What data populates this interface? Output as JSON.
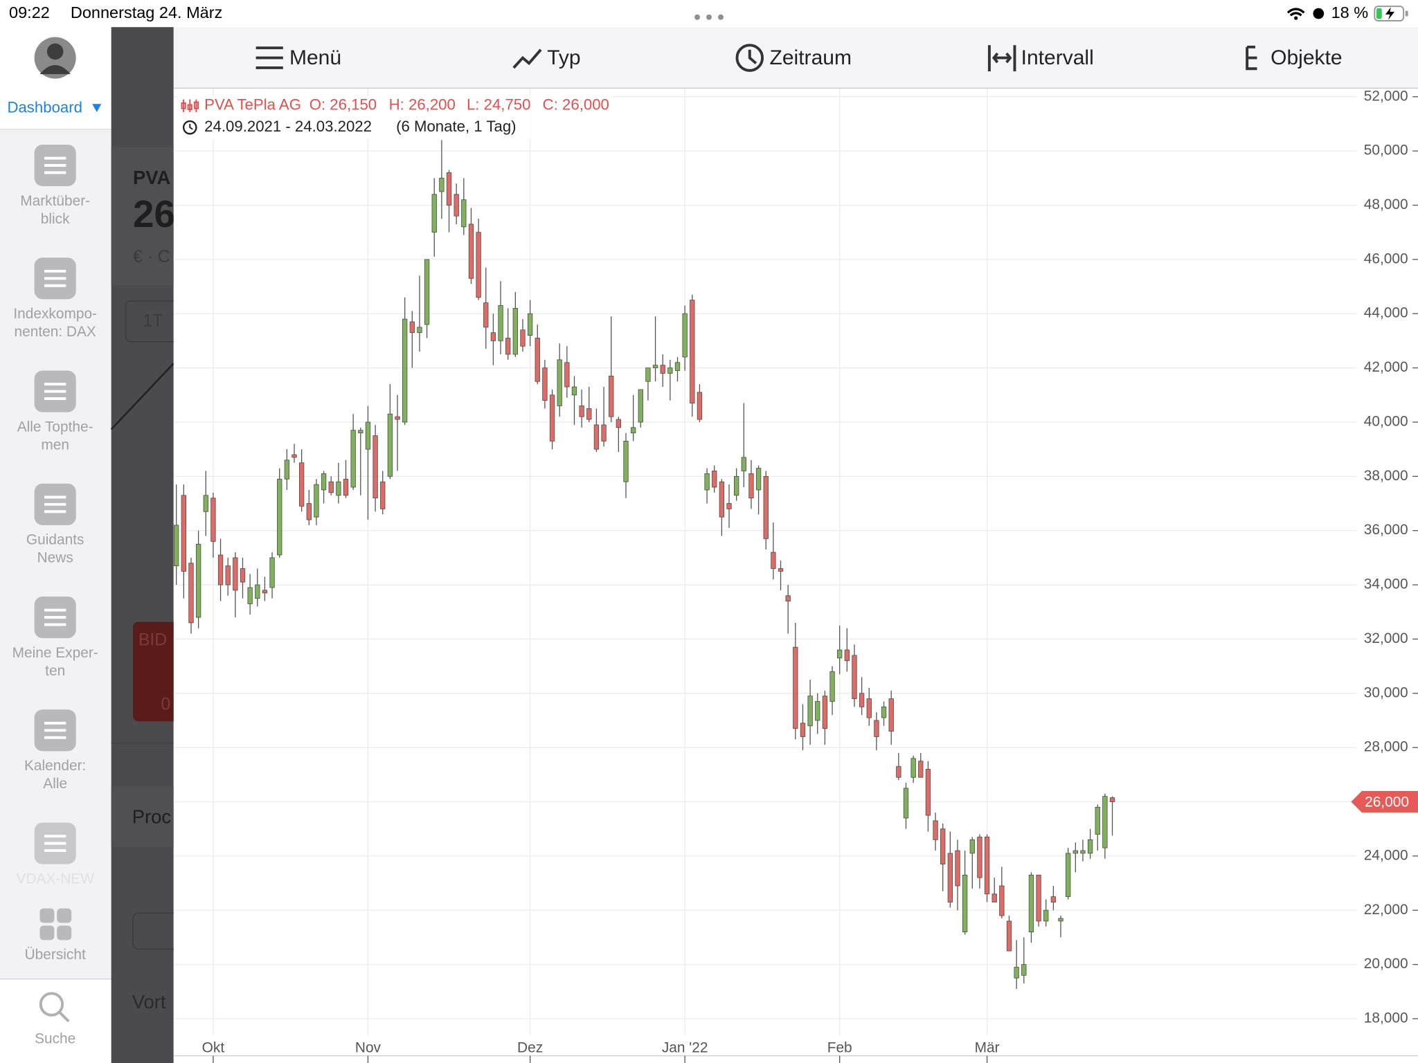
{
  "status_bar": {
    "time": "09:22",
    "date": "Donnerstag 24. März",
    "battery": "18 %"
  },
  "sidebar": {
    "dashboard": "Dashboard",
    "items": [
      {
        "lines": [
          "Marktüber-",
          "blick"
        ]
      },
      {
        "lines": [
          "Indexkompo-",
          "nenten: DAX"
        ]
      },
      {
        "lines": [
          "Alle Topthe-",
          "men"
        ]
      },
      {
        "lines": [
          "Guidants",
          "News"
        ]
      },
      {
        "lines": [
          "Meine Exper-",
          "ten"
        ]
      },
      {
        "lines": [
          "Kalender:",
          "Alle"
        ]
      },
      {
        "lines": [
          "VDAX-NEW"
        ]
      },
      {
        "lines": [
          "Übersicht"
        ]
      }
    ],
    "search": "Suche"
  },
  "background": [
    "PVA",
    "26",
    "€ · C",
    "1T",
    "BID",
    "0",
    "Proc",
    "Vort"
  ],
  "toolbar": [
    "Menü",
    "Typ",
    "Zeitraum",
    "Intervall",
    "Objekte"
  ],
  "chart_data": {
    "type": "candlestick",
    "title": "PVA TePla AG",
    "ohlc_text": [
      "O: 26,150",
      "H: 26,200",
      "L: 24,750",
      "C: 26,000"
    ],
    "range_text": "24.09.2021 - 24.03.2022",
    "period_text": "(6 Monate, 1 Tag)",
    "categories": [
      null,
      null,
      null,
      null,
      null,
      "Okt",
      null,
      null,
      null,
      null,
      null,
      null,
      null,
      null,
      null,
      null,
      null,
      null,
      null,
      null,
      null,
      null,
      null,
      null,
      null,
      null,
      "Nov",
      null,
      null,
      null,
      null,
      null,
      null,
      null,
      null,
      null,
      null,
      null,
      null,
      null,
      null,
      null,
      null,
      null,
      null,
      null,
      null,
      null,
      "Dez",
      null,
      null,
      null,
      null,
      null,
      null,
      null,
      null,
      null,
      null,
      null,
      null,
      null,
      null,
      null,
      null,
      null,
      null,
      null,
      null,
      "Jan '22",
      null,
      null,
      null,
      null,
      null,
      null,
      null,
      null,
      null,
      null,
      null,
      null,
      null,
      null,
      null,
      null,
      null,
      null,
      null,
      null,
      "Feb",
      null,
      null,
      null,
      null,
      null,
      null,
      null,
      null,
      null,
      null,
      null,
      null,
      null,
      null,
      null,
      null,
      null,
      null,
      null,
      "Mär",
      null,
      null,
      null,
      null,
      null,
      null,
      null,
      null,
      null,
      null,
      null,
      null,
      null,
      null,
      null,
      null,
      null
    ],
    "open": [
      34700,
      37300,
      34800,
      32800,
      36700,
      37200,
      35100,
      34700,
      35000,
      34600,
      33300,
      33500,
      33800,
      33900,
      35100,
      37900,
      38800,
      38500,
      37000,
      36500,
      37500,
      37800,
      37300,
      37900,
      37600,
      39600,
      39000,
      39500,
      37800,
      38000,
      40200,
      40000,
      43700,
      43300,
      43600,
      47000,
      48500,
      49200,
      48400,
      47200,
      47300,
      47000,
      44400,
      43300,
      43000,
      43100,
      42500,
      43400,
      43200,
      43100,
      42000,
      41000,
      40600,
      42200,
      41000,
      40600,
      40500,
      39900,
      39900,
      41700,
      40100,
      37800,
      39600,
      40000,
      41500,
      42000,
      42100,
      41800,
      41900,
      42400,
      44500,
      41100,
      37500,
      38200,
      37800,
      37000,
      37300,
      38200,
      38100,
      37500,
      38000,
      35200,
      34600,
      33600,
      31700,
      28900,
      28800,
      29000,
      29900,
      29700,
      31300,
      31600,
      31400,
      30000,
      29800,
      29000,
      29100,
      29800,
      27300,
      25400,
      26900,
      27500,
      27200,
      25300,
      25000,
      24100,
      24200,
      21200,
      24100,
      24700,
      24700,
      22600,
      22900,
      21600,
      19500,
      19600,
      21200,
      23300,
      21600,
      22500,
      21600,
      22500,
      24100,
      24100,
      24100,
      24800,
      24300,
      26150
    ],
    "high": [
      37700,
      37700,
      35000,
      36000,
      38200,
      37400,
      35700,
      35000,
      35200,
      35000,
      34400,
      34600,
      34300,
      35200,
      38300,
      39000,
      39200,
      39000,
      37500,
      37900,
      38200,
      38000,
      38500,
      38600,
      40300,
      39800,
      40600,
      39900,
      38200,
      41400,
      41000,
      44600,
      44100,
      45400,
      46000,
      49000,
      50400,
      49300,
      48800,
      49000,
      47900,
      47500,
      45700,
      44000,
      45200,
      44200,
      44800,
      43800,
      44500,
      43600,
      42300,
      41200,
      42900,
      42800,
      41700,
      41200,
      41300,
      40500,
      41300,
      43900,
      40200,
      39600,
      41000,
      41200,
      42000,
      43900,
      42500,
      42300,
      42400,
      44300,
      44700,
      41400,
      38300,
      38400,
      37900,
      37700,
      38300,
      40700,
      38600,
      38400,
      38200,
      36300,
      34900,
      34000,
      32600,
      29600,
      30500,
      30000,
      30100,
      31000,
      32500,
      32400,
      31800,
      30600,
      30200,
      29300,
      29700,
      30100,
      27800,
      26700,
      27700,
      27800,
      27500,
      25600,
      25200,
      24900,
      24600,
      24200,
      24700,
      24800,
      24800,
      23200,
      23600,
      21800,
      20900,
      21000,
      23400,
      23300,
      22400,
      22900,
      21800,
      24300,
      24500,
      24600,
      25000,
      25900,
      26300,
      26200
    ],
    "low": [
      34000,
      33500,
      32200,
      32400,
      35800,
      35000,
      33400,
      33600,
      32800,
      33500,
      32900,
      33200,
      33400,
      33500,
      35000,
      37500,
      38500,
      36700,
      36200,
      36200,
      37000,
      37300,
      37000,
      37200,
      37500,
      37300,
      36400,
      36700,
      36600,
      37900,
      38200,
      39900,
      42000,
      42600,
      43100,
      46100,
      47500,
      47000,
      47300,
      46900,
      45100,
      44500,
      42700,
      42100,
      42500,
      42300,
      42400,
      42600,
      42800,
      41400,
      40500,
      39000,
      40200,
      40900,
      39900,
      39800,
      40000,
      38900,
      39100,
      40000,
      38900,
      37200,
      39300,
      39800,
      40800,
      41500,
      41300,
      40800,
      41500,
      41900,
      40200,
      40000,
      37000,
      37400,
      35800,
      36100,
      37100,
      37600,
      36800,
      36600,
      35300,
      34200,
      33800,
      32200,
      28300,
      27900,
      28100,
      28500,
      28100,
      29200,
      30700,
      30800,
      29500,
      29200,
      28800,
      27900,
      28800,
      28100,
      26800,
      25000,
      26700,
      26900,
      24900,
      24200,
      22700,
      22100,
      22000,
      21100,
      22800,
      22800,
      22300,
      22300,
      21700,
      20500,
      19100,
      19300,
      20800,
      21400,
      21400,
      22000,
      21000,
      22400,
      23400,
      23800,
      23900,
      24200,
      23900,
      24750
    ],
    "close": [
      36200,
      34500,
      32600,
      35500,
      37300,
      35600,
      34000,
      34000,
      33800,
      34100,
      33900,
      34000,
      33700,
      35000,
      37900,
      38600,
      38700,
      36900,
      36400,
      37700,
      38100,
      37400,
      37800,
      37300,
      39700,
      39700,
      40000,
      37200,
      36800,
      40300,
      40100,
      43800,
      43300,
      43500,
      46000,
      48400,
      49000,
      48000,
      47600,
      48200,
      45300,
      44600,
      43500,
      43000,
      44300,
      42500,
      44200,
      42800,
      44000,
      41500,
      40800,
      39300,
      42300,
      41300,
      41300,
      40200,
      40100,
      39000,
      39300,
      40200,
      39800,
      39300,
      39800,
      41200,
      42000,
      42100,
      41800,
      42000,
      42200,
      44000,
      40700,
      40100,
      38100,
      37600,
      36500,
      36800,
      38000,
      38700,
      37200,
      38300,
      35700,
      34600,
      34500,
      33400,
      28700,
      28400,
      29900,
      29700,
      28700,
      30800,
      31600,
      31200,
      29800,
      29500,
      29100,
      28400,
      29500,
      28600,
      26900,
      26500,
      27600,
      26900,
      25500,
      24600,
      23700,
      22300,
      22900,
      23300,
      24600,
      23200,
      22600,
      22300,
      21800,
      20500,
      19900,
      20000,
      23300,
      21600,
      22000,
      22300,
      21700,
      24100,
      24200,
      24200,
      24600,
      25800,
      26200,
      26000
    ],
    "up_color": "#7fb25a",
    "down_color": "#de6b66",
    "ylim": [
      17400,
      52300
    ],
    "yticks": [
      {
        "value": 18000,
        "label": "18,000"
      },
      {
        "value": 20000,
        "label": "20,000"
      },
      {
        "value": 22000,
        "label": "22,000"
      },
      {
        "value": 24000,
        "label": "24,000"
      },
      {
        "value": 26000,
        "label": "26,000"
      },
      {
        "value": 28000,
        "label": "28,000"
      },
      {
        "value": 30000,
        "label": "30,000"
      },
      {
        "value": 32000,
        "label": "32,000"
      },
      {
        "value": 34000,
        "label": "34,000"
      },
      {
        "value": 36000,
        "label": "36,000"
      },
      {
        "value": 38000,
        "label": "38,000"
      },
      {
        "value": 40000,
        "label": "40,000"
      },
      {
        "value": 42000,
        "label": "42,000"
      },
      {
        "value": 44000,
        "label": "44,000"
      },
      {
        "value": 46000,
        "label": "46,000"
      },
      {
        "value": 48000,
        "label": "48,000"
      },
      {
        "value": 50000,
        "label": "50,000"
      },
      {
        "value": 52000,
        "label": "52,000"
      }
    ],
    "grid": true,
    "last_price": {
      "value": 26000,
      "label": "26,000"
    }
  }
}
